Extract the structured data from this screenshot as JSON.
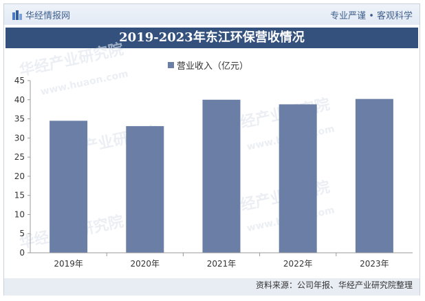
{
  "header": {
    "brand": "华经情报网",
    "slogan": "专业严谨 • 客观科学"
  },
  "chart_data": {
    "type": "bar",
    "title": "2019-2023年东江环保营收情况",
    "legend": "营业收入（亿元）",
    "categories": [
      "2019年",
      "2020年",
      "2021年",
      "2022年",
      "2023年"
    ],
    "series": [
      {
        "name": "营业收入（亿元）",
        "values": [
          34.5,
          33.1,
          40.0,
          38.8,
          40.2
        ]
      }
    ],
    "ylim": [
      0,
      45
    ],
    "yticks": [
      0,
      5,
      10,
      15,
      20,
      25,
      30,
      35,
      40,
      45
    ],
    "xlabel": "",
    "ylabel": "",
    "bar_color": "#6a7ea6"
  },
  "footer": {
    "source": "资料来源：公司年报、华经产业研究院整理"
  }
}
